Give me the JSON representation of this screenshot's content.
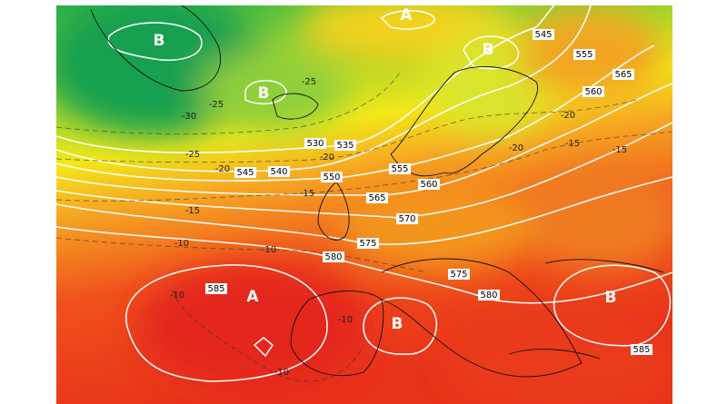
{
  "pressure_labels": [
    "B",
    "B",
    "A",
    "B",
    "A",
    "B",
    "B"
  ],
  "contour_labels": [
    "545",
    "555",
    "565",
    "560",
    "530",
    "535",
    "545",
    "540",
    "550",
    "555",
    "560",
    "565",
    "570",
    "575",
    "580",
    "585",
    "575",
    "580",
    "585"
  ],
  "temperature_labels": [
    "-30",
    "-25",
    "-25",
    "-25",
    "-20",
    "-20",
    "-15",
    "-15",
    "-10",
    "-10",
    "-15",
    "-15",
    "-20",
    "-20",
    "-10",
    "-10",
    "-10"
  ]
}
